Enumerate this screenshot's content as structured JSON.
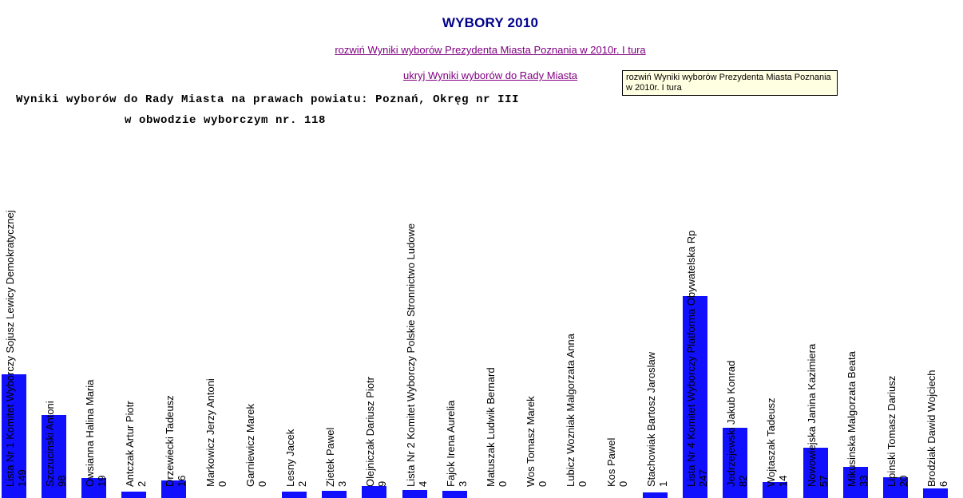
{
  "header": {
    "title": "WYBORY 2010",
    "link_president": "rozwiń Wyniki wyborów Prezydenta Miasta Poznania w 2010r. I tura",
    "link_council": "ukryj Wyniki wyborów do Rady Miasta",
    "tooltip": "rozwiń Wyniki wyborów Prezydenta Miasta Poznania w 2010r. I tura"
  },
  "heading": {
    "line1": "Wyniki wyborów do Rady Miasta na prawach powiatu: Poznań, Okręg nr III",
    "line2": "w obwodzie wyborczym nr. 118"
  },
  "colors": {
    "title": "#00008b",
    "link": "#800080",
    "bar": "#1010ff",
    "tooltip_bg": "#ffffe1"
  },
  "chart_data": {
    "type": "bar",
    "title": "Wyniki wyborów do Rady Miasta na prawach powiatu: Poznań, Okręg nr III w obwodzie wyborczym nr. 118",
    "orientation": "vertical-bars-with-rotated-labels",
    "legend": "none",
    "grid": "off",
    "ylim": [
      0,
      247
    ],
    "xlabel": "",
    "ylabel": "",
    "categories": [
      "Lista Nr 1 Komitet Wyborczy Sojusz Lewicy Demokratycznej",
      "Szczucinski Antoni",
      "Owsianna Halina Maria",
      "Antczak Artur Piotr",
      "Drzewiecki Tadeusz",
      "Markowicz Jerzy Antoni",
      "Garniewicz Marek",
      "Lesny Jacek",
      "Zietek Pawel",
      "Olejniczak Dariusz Piotr",
      "Lista Nr 2 Komitet Wyborczy Polskie Stronnictwo Ludowe",
      "Fajok Irena Aurelia",
      "Matuszak Ludwik Bernard",
      "Wos Tomasz Marek",
      "Lubicz Wozniak Malgorzata Anna",
      "Kos Pawel",
      "Stachowiak Bartosz Jaroslaw",
      "Lista Nr 4 Komitet Wyborczy Platforma Obywatelska Rp",
      "Jedrzejewski Jakub Konrad",
      "Wojtaszak Tadeusz",
      "Nowowiejska Janina Kazimiera",
      "Mikusinska Malgorzata Beata",
      "Lipinski Tomasz Dariusz",
      "Brodziak Dawid Wojciech"
    ],
    "values": [
      149,
      98,
      19,
      2,
      16,
      0,
      0,
      2,
      3,
      9,
      4,
      3,
      0,
      0,
      0,
      0,
      1,
      247,
      82,
      14,
      57,
      33,
      20,
      6
    ]
  }
}
